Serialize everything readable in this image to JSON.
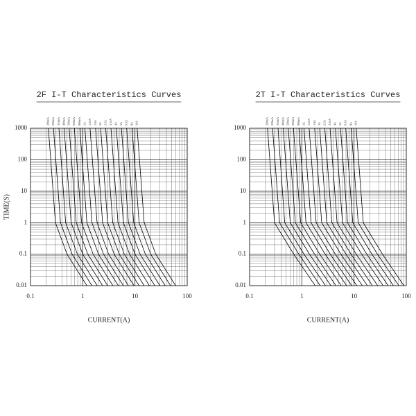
{
  "chart_data": [
    {
      "type": "line",
      "title": "2F I-T Characteristics Curves",
      "xlabel": "CURRENT(A)",
      "ylabel": "TIME(S)",
      "log_x": true,
      "log_y": true,
      "grid": true,
      "color": "#000000",
      "xlim": [
        0.1,
        100
      ],
      "ylim": [
        0.01,
        1000
      ],
      "xticks": [
        0.1,
        1,
        10,
        100
      ],
      "yticks": [
        0.01,
        0.1,
        1,
        10,
        100,
        1000
      ],
      "series": [
        {
          "name": "200mA",
          "x": [
            0.22,
            0.3,
            0.5,
            1.2
          ],
          "values": [
            1000,
            1,
            0.1,
            0.01
          ]
        },
        {
          "name": "250mA",
          "x": [
            0.275,
            0.375,
            0.625,
            1.5
          ],
          "values": [
            1000,
            1,
            0.1,
            0.01
          ]
        },
        {
          "name": "315mA",
          "x": [
            0.35,
            0.47,
            0.79,
            1.89
          ],
          "values": [
            1000,
            1,
            0.1,
            0.01
          ]
        },
        {
          "name": "400mA",
          "x": [
            0.44,
            0.6,
            1,
            2.4
          ],
          "values": [
            1000,
            1,
            0.1,
            0.01
          ]
        },
        {
          "name": "500mA",
          "x": [
            0.55,
            0.75,
            1.25,
            3
          ],
          "values": [
            1000,
            1,
            0.1,
            0.01
          ]
        },
        {
          "name": "630mA",
          "x": [
            0.69,
            0.95,
            1.58,
            3.78
          ],
          "values": [
            1000,
            1,
            0.1,
            0.01
          ]
        },
        {
          "name": "800mA",
          "x": [
            0.88,
            1.2,
            2,
            4.8
          ],
          "values": [
            1000,
            1,
            0.1,
            0.01
          ]
        },
        {
          "name": "1A",
          "x": [
            1.1,
            1.5,
            2.5,
            6
          ],
          "values": [
            1000,
            1,
            0.1,
            0.01
          ]
        },
        {
          "name": "1.25A",
          "x": [
            1.38,
            1.88,
            3.13,
            7.5
          ],
          "values": [
            1000,
            1,
            0.1,
            0.01
          ]
        },
        {
          "name": "1.6A",
          "x": [
            1.76,
            2.4,
            4,
            9.6
          ],
          "values": [
            1000,
            1,
            0.1,
            0.01
          ]
        },
        {
          "name": "2A",
          "x": [
            2.2,
            3,
            5,
            12
          ],
          "values": [
            1000,
            1,
            0.1,
            0.01
          ]
        },
        {
          "name": "2.5A",
          "x": [
            2.75,
            3.75,
            6.25,
            15
          ],
          "values": [
            1000,
            1,
            0.1,
            0.01
          ]
        },
        {
          "name": "3.15A",
          "x": [
            3.47,
            4.73,
            7.88,
            18.9
          ],
          "values": [
            1000,
            1,
            0.1,
            0.01
          ]
        },
        {
          "name": "4A",
          "x": [
            4.4,
            6,
            10,
            24
          ],
          "values": [
            1000,
            1,
            0.1,
            0.01
          ]
        },
        {
          "name": "5A",
          "x": [
            5.5,
            7.5,
            12.5,
            30
          ],
          "values": [
            1000,
            1,
            0.1,
            0.01
          ]
        },
        {
          "name": "6.3A",
          "x": [
            6.93,
            9.45,
            15.8,
            37.8
          ],
          "values": [
            1000,
            1,
            0.1,
            0.01
          ]
        },
        {
          "name": "8A",
          "x": [
            8.8,
            12,
            20,
            48
          ],
          "values": [
            1000,
            1,
            0.1,
            0.01
          ]
        },
        {
          "name": "10A",
          "x": [
            11,
            15,
            25,
            60
          ],
          "values": [
            1000,
            1,
            0.1,
            0.01
          ]
        }
      ]
    },
    {
      "type": "line",
      "title": "2T I-T Characteristics Curves",
      "xlabel": "CURRENT(A)",
      "log_x": true,
      "log_y": true,
      "grid": true,
      "color": "#000000",
      "xlim": [
        0.1,
        100
      ],
      "ylim": [
        0.01,
        1000
      ],
      "xticks": [
        0.1,
        1,
        10,
        100
      ],
      "yticks": [
        0.01,
        0.1,
        1,
        10,
        100,
        1000
      ],
      "series": [
        {
          "name": "200mA",
          "x": [
            0.22,
            0.3,
            0.7,
            1.8
          ],
          "values": [
            1000,
            1,
            0.1,
            0.01
          ]
        },
        {
          "name": "250mA",
          "x": [
            0.275,
            0.375,
            0.875,
            2.25
          ],
          "values": [
            1000,
            1,
            0.1,
            0.01
          ]
        },
        {
          "name": "315mA",
          "x": [
            0.35,
            0.47,
            1.1,
            2.84
          ],
          "values": [
            1000,
            1,
            0.1,
            0.01
          ]
        },
        {
          "name": "400mA",
          "x": [
            0.44,
            0.6,
            1.4,
            3.6
          ],
          "values": [
            1000,
            1,
            0.1,
            0.01
          ]
        },
        {
          "name": "500mA",
          "x": [
            0.55,
            0.75,
            1.75,
            4.5
          ],
          "values": [
            1000,
            1,
            0.1,
            0.01
          ]
        },
        {
          "name": "630mA",
          "x": [
            0.69,
            0.95,
            2.2,
            5.67
          ],
          "values": [
            1000,
            1,
            0.1,
            0.01
          ]
        },
        {
          "name": "800mA",
          "x": [
            0.88,
            1.2,
            2.8,
            7.2
          ],
          "values": [
            1000,
            1,
            0.1,
            0.01
          ]
        },
        {
          "name": "1A",
          "x": [
            1.1,
            1.5,
            3.5,
            9
          ],
          "values": [
            1000,
            1,
            0.1,
            0.01
          ]
        },
        {
          "name": "1.25A",
          "x": [
            1.38,
            1.88,
            4.38,
            11.3
          ],
          "values": [
            1000,
            1,
            0.1,
            0.01
          ]
        },
        {
          "name": "1.6A",
          "x": [
            1.76,
            2.4,
            5.6,
            14.4
          ],
          "values": [
            1000,
            1,
            0.1,
            0.01
          ]
        },
        {
          "name": "2A",
          "x": [
            2.2,
            3,
            7,
            18
          ],
          "values": [
            1000,
            1,
            0.1,
            0.01
          ]
        },
        {
          "name": "2.5A",
          "x": [
            2.75,
            3.75,
            8.75,
            22.5
          ],
          "values": [
            1000,
            1,
            0.1,
            0.01
          ]
        },
        {
          "name": "3.15A",
          "x": [
            3.47,
            4.73,
            11,
            28.4
          ],
          "values": [
            1000,
            1,
            0.1,
            0.01
          ]
        },
        {
          "name": "4A",
          "x": [
            4.4,
            6,
            14,
            36
          ],
          "values": [
            1000,
            1,
            0.1,
            0.01
          ]
        },
        {
          "name": "5A",
          "x": [
            5.5,
            7.5,
            17.5,
            45
          ],
          "values": [
            1000,
            1,
            0.1,
            0.01
          ]
        },
        {
          "name": "6.3A",
          "x": [
            6.93,
            9.45,
            22,
            56.7
          ],
          "values": [
            1000,
            1,
            0.1,
            0.01
          ]
        },
        {
          "name": "8A",
          "x": [
            8.8,
            12,
            28,
            72
          ],
          "values": [
            1000,
            1,
            0.1,
            0.01
          ]
        },
        {
          "name": "10A",
          "x": [
            11,
            15,
            35,
            90
          ],
          "values": [
            1000,
            1,
            0.1,
            0.01
          ]
        }
      ]
    }
  ]
}
